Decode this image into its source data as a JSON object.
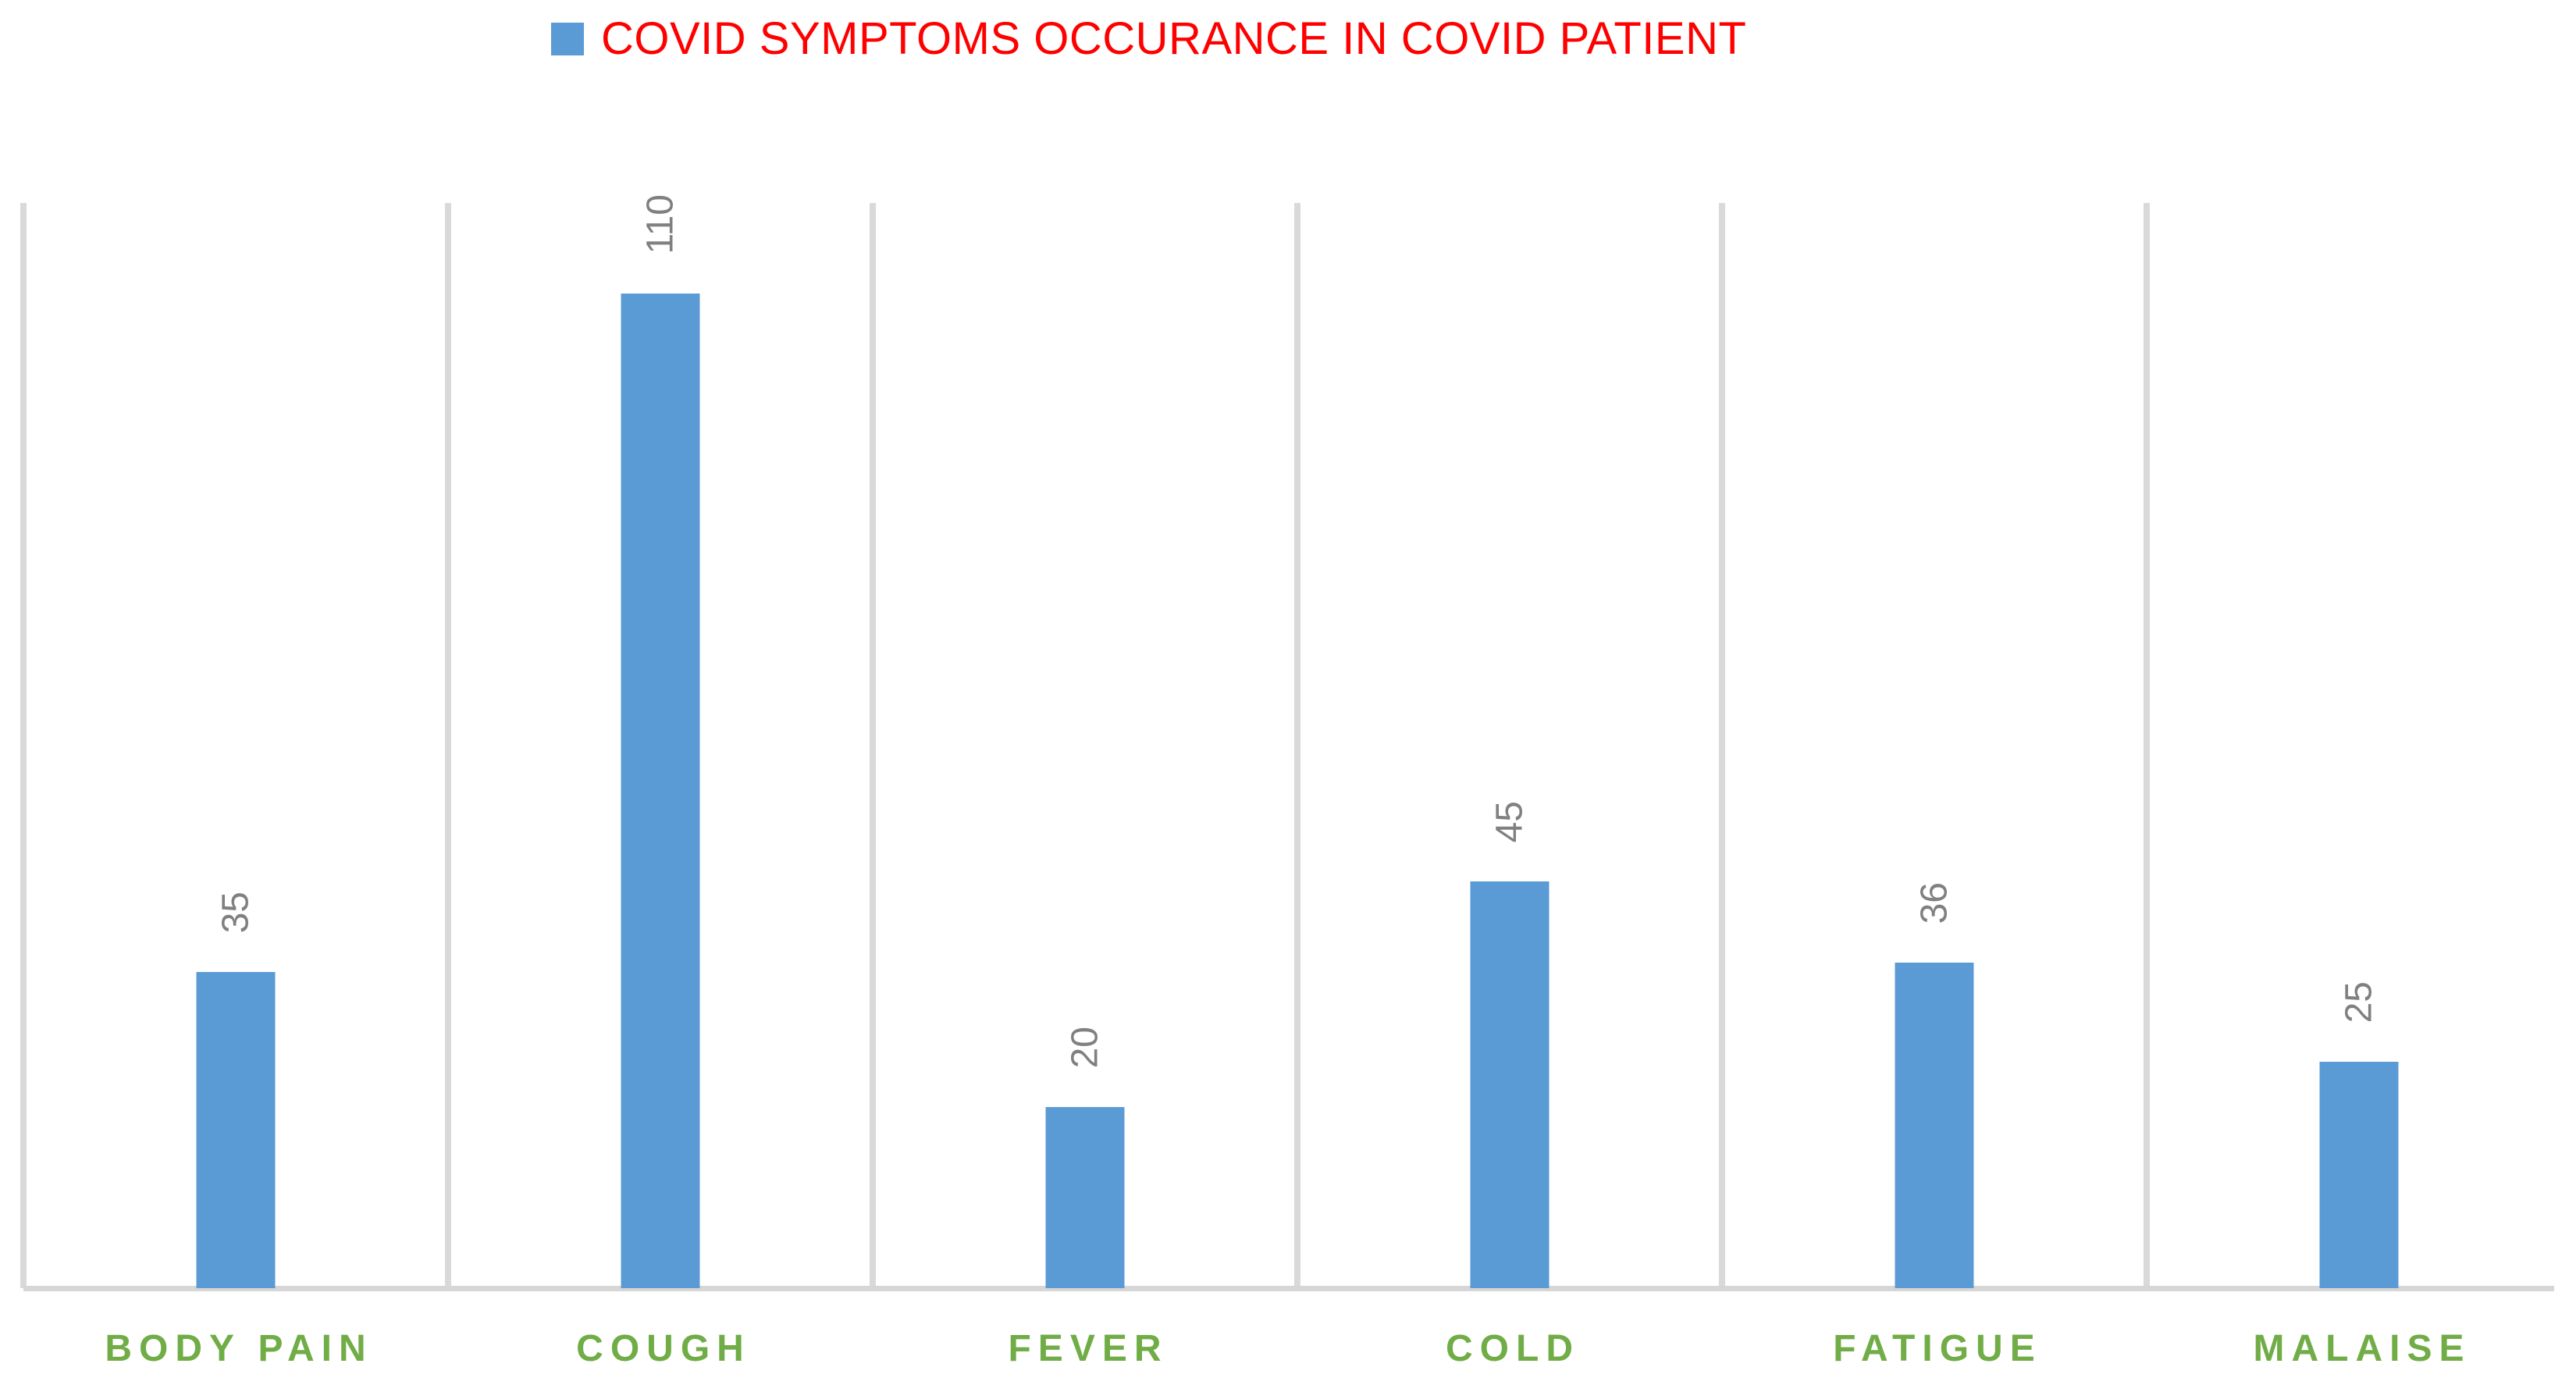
{
  "legend": {
    "marker_icon": "blue-square-series-marker",
    "label": "COVID SYMPTOMS OCCURANCE IN COVID PATIENT"
  },
  "colors": {
    "bar": "#5B9BD5",
    "legend_text": "#FF0000",
    "value_label": "#808080",
    "category_label": "#70AD47",
    "gridline": "#D9D9D9",
    "baseline": "#D6D6D6",
    "background": "#FFFFFF"
  },
  "chart_data": {
    "type": "bar",
    "title": "COVID SYMPTOMS OCCURANCE IN COVID PATIENT",
    "categories": [
      "BODY PAIN",
      "COUGH",
      "FEVER",
      "COLD",
      "FATIGUE",
      "MALAISE"
    ],
    "values": [
      35,
      110,
      20,
      45,
      36,
      25
    ],
    "series_name": "COVID SYMPTOMS OCCURANCE IN COVID PATIENT",
    "xlabel": "",
    "ylabel": "",
    "ylim": [
      0,
      120
    ],
    "y_axis_visible": false,
    "grid": "vertical-category-separators",
    "legend_position": "top",
    "data_labels": "rotated-90-above-bars"
  }
}
